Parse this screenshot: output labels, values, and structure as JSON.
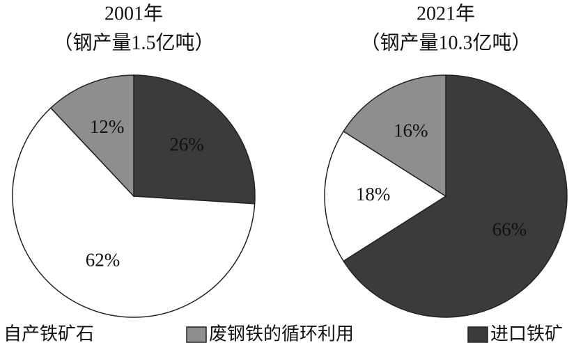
{
  "chart_data": [
    {
      "type": "pie",
      "title": "2001年",
      "subtitle": "（钢产量1.5亿吨）",
      "categories": [
        "进口铁矿",
        "自产铁矿石",
        "废钢铁的循环利用"
      ],
      "values": [
        26,
        62,
        12
      ],
      "value_labels": [
        "26%",
        "62%",
        "12%"
      ],
      "colors": [
        "#3b3b3b",
        "#ffffff",
        "#8e8e8e"
      ]
    },
    {
      "type": "pie",
      "title": "2021年",
      "subtitle": "（钢产量10.3亿吨）",
      "categories": [
        "进口铁矿",
        "自产铁矿石",
        "废钢铁的循环利用"
      ],
      "values": [
        66,
        18,
        16
      ],
      "value_labels": [
        "66%",
        "18%",
        "16%"
      ],
      "colors": [
        "#3b3b3b",
        "#ffffff",
        "#8e8e8e"
      ]
    }
  ]
}
